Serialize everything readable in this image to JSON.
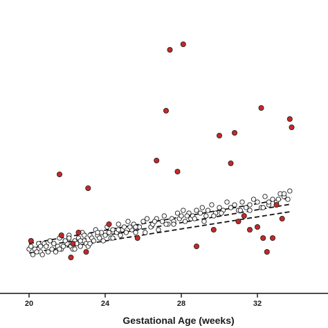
{
  "chart_data": {
    "type": "scatter",
    "title": "",
    "xlabel": "Gestational Age (weeks)",
    "ylabel": "",
    "xlim": [
      18.8,
      36.2
    ],
    "ylim": [
      0,
      100
    ],
    "x_ticks": [
      20,
      24,
      28,
      32
    ],
    "x_tick_labels": [
      "20",
      "24",
      "28",
      "32"
    ],
    "grid": false,
    "legend": "none",
    "colors": {
      "highlight": "#c62828",
      "normal_fill": "#ffffff",
      "marker_edge": "#1a1a1a",
      "line": "#111111"
    },
    "reference_lines": [
      {
        "name": "",
        "style": "dashed",
        "x": [
          20.0,
          33.8
        ],
        "y": [
          18.0,
          34.6
        ]
      },
      {
        "name": "",
        "style": "dashed",
        "x": [
          20.0,
          33.8
        ],
        "y": [
          16.3,
          32.3
        ]
      },
      {
        "name": "",
        "style": "dashed",
        "x": [
          20.0,
          33.8
        ],
        "y": [
          14.6,
          29.6
        ]
      }
    ],
    "series": [
      {
        "kind": "normal",
        "x": [
          20.0,
          20.1,
          20.2,
          20.3,
          20.5,
          20.6,
          20.7,
          20.8,
          20.9,
          21.0,
          21.1,
          21.2,
          21.3,
          21.4,
          21.5,
          21.6,
          21.7,
          21.8,
          21.9,
          22.0,
          22.1,
          22.2,
          22.3,
          22.4,
          22.5,
          22.6,
          22.7,
          22.8,
          22.9,
          23.0,
          23.1,
          23.2,
          23.3,
          23.4,
          23.5,
          23.6,
          23.7,
          23.8,
          23.9,
          24.0,
          24.1,
          24.2,
          24.3,
          24.4,
          24.6,
          24.7,
          24.8,
          24.9,
          25.0,
          25.1,
          25.2,
          25.4,
          25.5,
          25.6,
          25.8,
          26.0,
          26.2,
          26.4,
          26.5,
          26.7,
          26.8,
          27.0,
          27.1,
          27.3,
          27.5,
          27.6,
          27.8,
          27.9,
          28.0,
          28.1,
          28.2,
          28.4,
          28.5,
          28.6,
          28.8,
          29.0,
          29.1,
          29.3,
          29.4,
          29.6,
          29.8,
          30.0,
          30.2,
          30.4,
          30.6,
          30.8,
          31.0,
          31.2,
          31.4,
          31.6,
          31.8,
          32.0,
          32.2,
          32.4,
          32.6,
          32.8,
          33.0,
          33.2,
          33.4,
          33.6,
          33.7,
          20.4,
          21.3,
          21.9,
          22.4,
          22.9,
          23.6,
          24.4,
          25.3,
          26.1,
          27.2,
          28.3,
          29.2,
          30.1,
          31.1,
          32.3,
          33.1,
          20.6,
          21.6,
          22.1,
          22.7,
          23.2,
          24.7,
          25.6,
          26.6,
          27.6,
          28.7,
          29.7,
          30.6,
          31.6,
          32.6,
          33.4
        ],
        "y": [
          16,
          17,
          14,
          16,
          18,
          15,
          14,
          18,
          17,
          15,
          19,
          16,
          18,
          15,
          17,
          20,
          16,
          17,
          19,
          18,
          21,
          17,
          16,
          19,
          18,
          20,
          17,
          22,
          19,
          18,
          17,
          21,
          20,
          19,
          23,
          21,
          20,
          22,
          19,
          21,
          24,
          22,
          20,
          23,
          22,
          25,
          21,
          23,
          24,
          22,
          26,
          23,
          25,
          22,
          24,
          26,
          27,
          24,
          25,
          27,
          23,
          26,
          28,
          25,
          27,
          26,
          29,
          27,
          28,
          30,
          26,
          29,
          27,
          28,
          30,
          29,
          31,
          28,
          30,
          32,
          29,
          31,
          30,
          33,
          31,
          32,
          30,
          33,
          31,
          32,
          34,
          33,
          31,
          35,
          32,
          34,
          33,
          36,
          35,
          34,
          37,
          15,
          18,
          19,
          16,
          21,
          22,
          20,
          24,
          22,
          25,
          28,
          26,
          29,
          30,
          31,
          34,
          17,
          16,
          20,
          19,
          18,
          23,
          24,
          26,
          25,
          27,
          28,
          31,
          30,
          33,
          36
        ]
      },
      {
        "kind": "highlighted",
        "x": [
          20.1,
          21.6,
          21.7,
          22.2,
          22.3,
          22.6,
          23.0,
          23.1,
          24.2,
          25.7,
          26.7,
          27.2,
          27.4,
          27.8,
          28.1,
          28.8,
          29.7,
          30.0,
          30.6,
          30.8,
          31.0,
          31.3,
          31.6,
          32.0,
          32.2,
          32.3,
          32.5,
          32.8,
          33.0,
          33.3,
          33.7,
          33.8
        ],
        "y": [
          19,
          43,
          21,
          13,
          18,
          22,
          15,
          38,
          25,
          20,
          48,
          66,
          88,
          44,
          90,
          17,
          23,
          57,
          47,
          58,
          26,
          28,
          23,
          24,
          67,
          20,
          15,
          20,
          32,
          27,
          63,
          60
        ]
      }
    ]
  }
}
